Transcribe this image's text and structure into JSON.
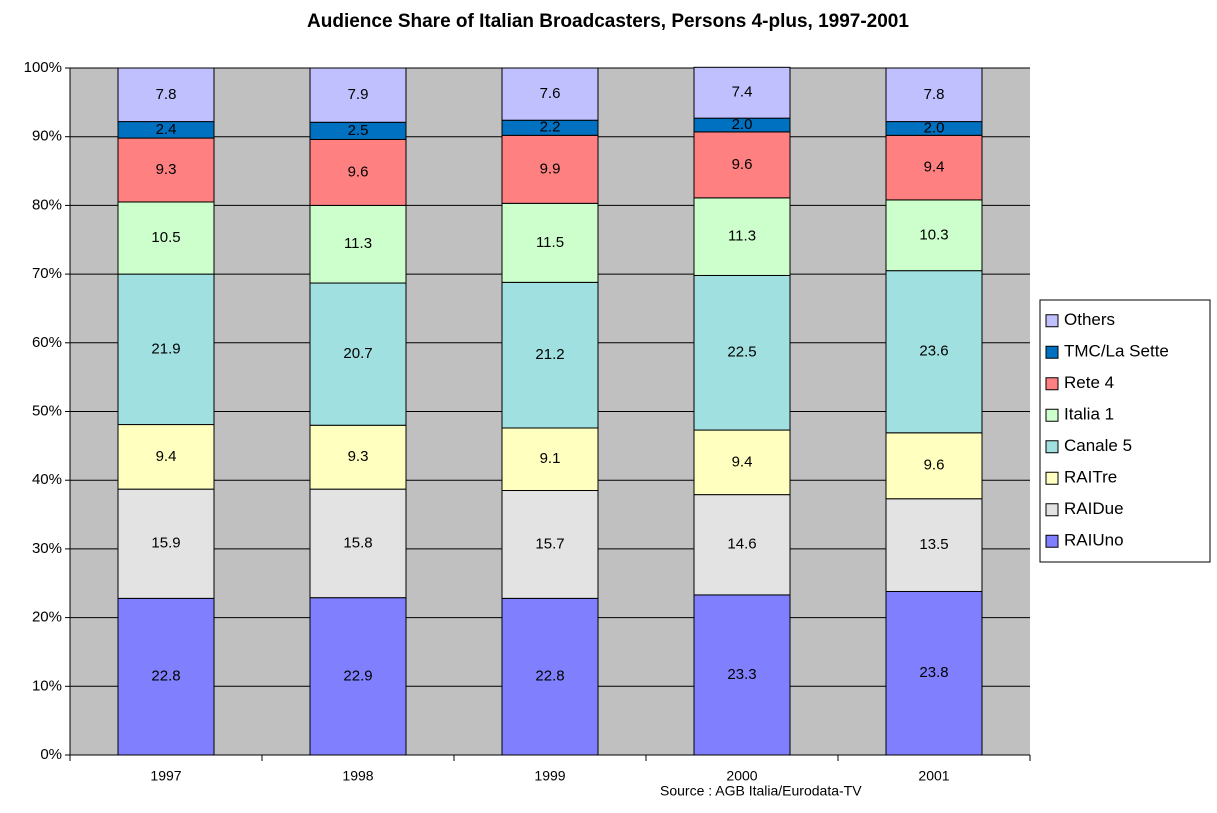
{
  "chart_data": {
    "type": "stacked_bar",
    "title": "Audience Share of Italian Broadcasters, Persons 4-plus, 1997-2001",
    "source": "Source : AGB Italia/Eurodata-TV",
    "categories": [
      "1997",
      "1998",
      "1999",
      "2000",
      "2001"
    ],
    "series": [
      {
        "name": "RAIUno",
        "color": "#8080ff",
        "values": [
          22.8,
          22.9,
          22.8,
          23.3,
          23.8
        ]
      },
      {
        "name": "RAIDue",
        "color": "#e3e3e3",
        "values": [
          15.9,
          15.8,
          15.7,
          14.6,
          13.5
        ]
      },
      {
        "name": "RAITre",
        "color": "#ffffc0",
        "values": [
          9.4,
          9.3,
          9.1,
          9.4,
          9.6
        ]
      },
      {
        "name": "Canale 5",
        "color": "#a0e0e0",
        "values": [
          21.9,
          20.7,
          21.2,
          22.5,
          23.6
        ]
      },
      {
        "name": "Italia 1",
        "color": "#ccffcc",
        "values": [
          10.5,
          11.3,
          11.5,
          11.3,
          10.3
        ]
      },
      {
        "name": "Rete 4",
        "color": "#ff8080",
        "values": [
          9.3,
          9.6,
          9.9,
          9.6,
          9.4
        ]
      },
      {
        "name": "TMC/La Sette",
        "color": "#0070c0",
        "values": [
          2.4,
          2.5,
          2.2,
          2.0,
          2.0
        ],
        "value_labels": [
          "2.4",
          "2.5",
          "2.2",
          "2.0",
          "2.0"
        ]
      },
      {
        "name": "Others",
        "color": "#c0c0ff",
        "values": [
          7.8,
          7.9,
          7.6,
          7.4,
          7.8
        ]
      }
    ],
    "ylim": [
      0,
      100
    ],
    "yticks": [
      {
        "value": 0,
        "label": "0%"
      },
      {
        "value": 10,
        "label": "10%"
      },
      {
        "value": 20,
        "label": "20%"
      },
      {
        "value": 30,
        "label": "30%"
      },
      {
        "value": 40,
        "label": "40%"
      },
      {
        "value": 50,
        "label": "50%"
      },
      {
        "value": 60,
        "label": "60%"
      },
      {
        "value": 70,
        "label": "70%"
      },
      {
        "value": 80,
        "label": "80%"
      },
      {
        "value": 90,
        "label": "90%"
      },
      {
        "value": 100,
        "label": "100%"
      }
    ],
    "grid": true,
    "legend": "right"
  }
}
